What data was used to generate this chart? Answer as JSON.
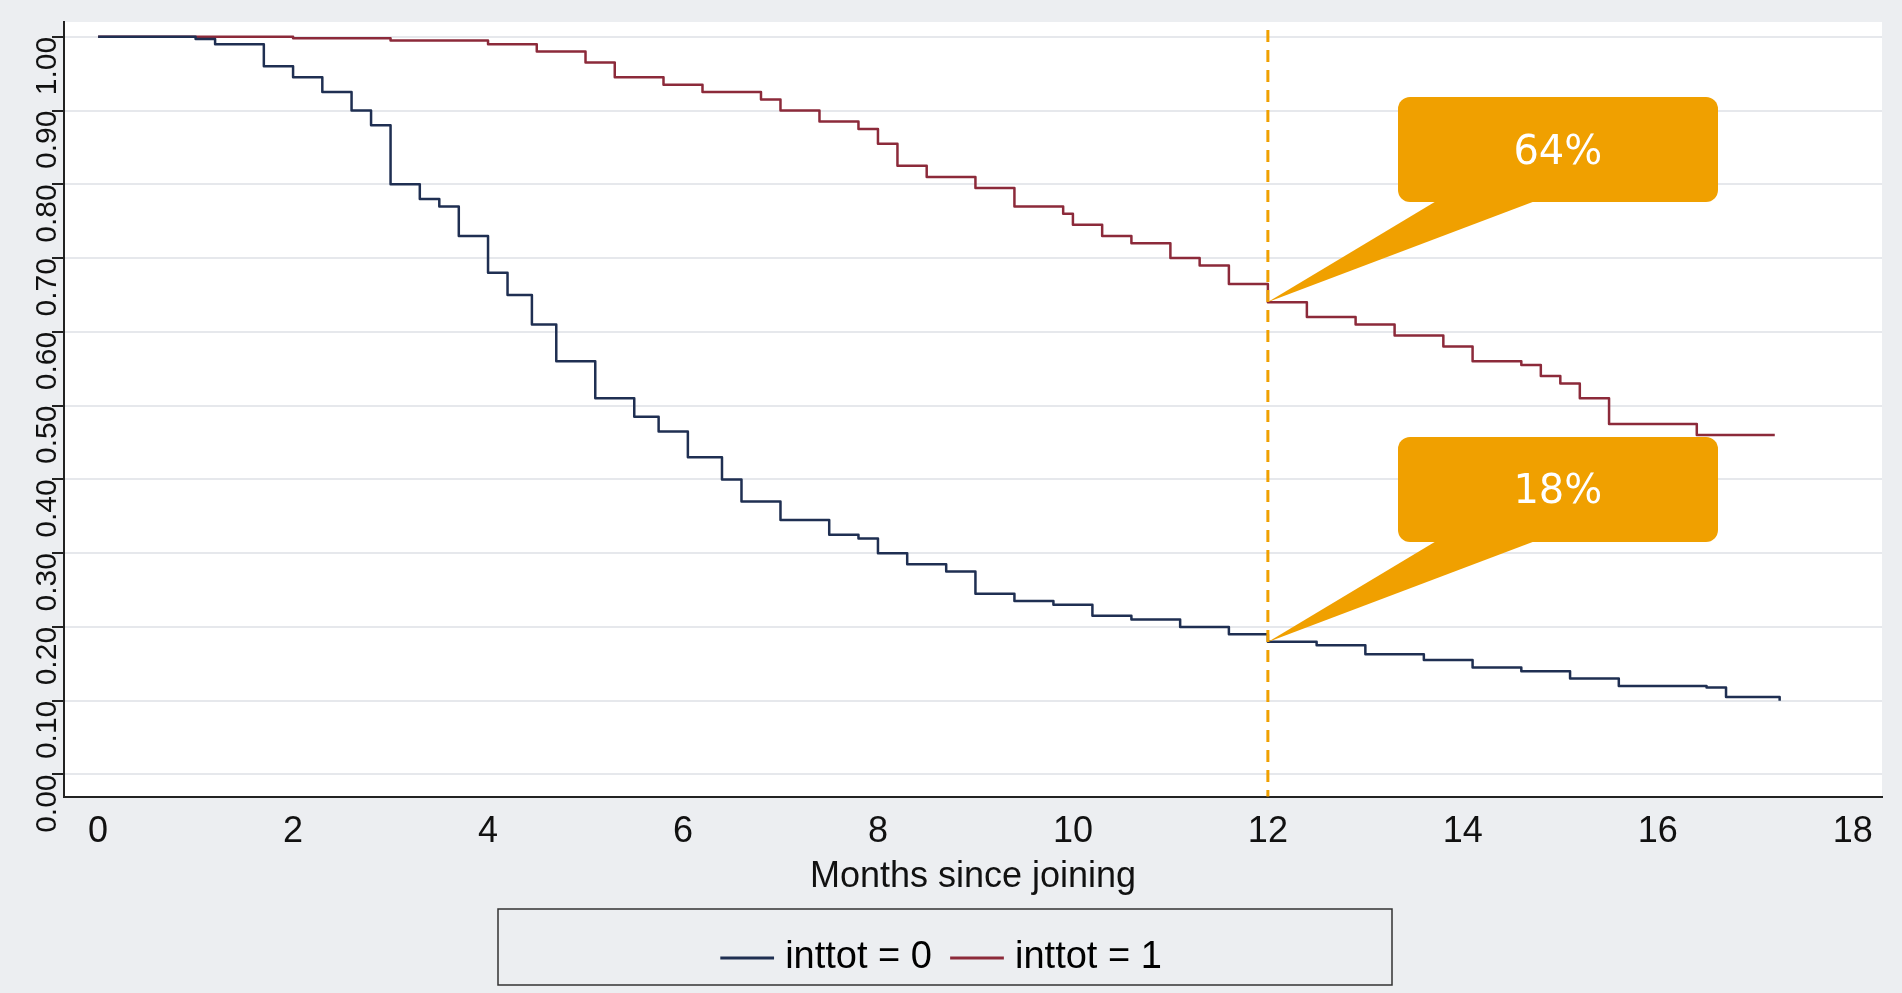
{
  "chart_data": {
    "type": "step",
    "xlabel": "Months since joining",
    "xlim": [
      -0.35,
      18.3
    ],
    "xticks": [
      0,
      2,
      4,
      6,
      8,
      10,
      12,
      14,
      16,
      18
    ],
    "ylim": [
      -0.03,
      1.02
    ],
    "yticks": [
      {
        "value": 0,
        "label": "0.00"
      },
      {
        "value": 0.1,
        "label": "0.10"
      },
      {
        "value": 0.2,
        "label": "0.20"
      },
      {
        "value": 0.3,
        "label": "0.30"
      },
      {
        "value": 0.4,
        "label": "0.40"
      },
      {
        "value": 0.5,
        "label": "0.50"
      },
      {
        "value": 0.6,
        "label": "0.60"
      },
      {
        "value": 0.7,
        "label": "0.70"
      },
      {
        "value": 0.8,
        "label": "0.80"
      },
      {
        "value": 0.9,
        "label": "0.90"
      },
      {
        "value": 1,
        "label": "1.00"
      }
    ],
    "grid": "y",
    "legend": "bottom",
    "marker": "none",
    "line_style": "solid",
    "series": [
      {
        "name": "inttot = 0",
        "color": "#1f2f52",
        "x": [
          0,
          1.0,
          1.2,
          1.7,
          2.0,
          2.3,
          2.6,
          2.8,
          3.0,
          3.3,
          3.5,
          3.7,
          4.0,
          4.2,
          4.45,
          4.7,
          5.1,
          5.5,
          5.75,
          6.05,
          6.4,
          6.6,
          7.0,
          7.5,
          7.8,
          8.0,
          8.3,
          8.7,
          9.0,
          9.4,
          9.8,
          10.2,
          10.6,
          11.1,
          11.6,
          12.0,
          12.5,
          13.0,
          13.6,
          14.1,
          14.6,
          15.1,
          15.6,
          16.5,
          16.7,
          17.25
        ],
        "values": [
          1,
          0.997,
          0.99,
          0.96,
          0.945,
          0.925,
          0.9,
          0.88,
          0.8,
          0.78,
          0.77,
          0.73,
          0.68,
          0.65,
          0.61,
          0.56,
          0.51,
          0.485,
          0.465,
          0.43,
          0.4,
          0.37,
          0.345,
          0.325,
          0.32,
          0.3,
          0.285,
          0.275,
          0.245,
          0.235,
          0.23,
          0.215,
          0.21,
          0.2,
          0.19,
          0.18,
          0.175,
          0.163,
          0.155,
          0.145,
          0.14,
          0.13,
          0.12,
          0.118,
          0.105,
          0.1
        ]
      },
      {
        "name": "inttot = 1",
        "color": "#8c2a3a",
        "x": [
          0,
          2.0,
          3.0,
          4.0,
          4.5,
          5.0,
          5.3,
          5.8,
          6.2,
          6.8,
          7.0,
          7.4,
          7.8,
          8.0,
          8.2,
          8.5,
          9.0,
          9.4,
          9.9,
          10.0,
          10.3,
          10.6,
          11.0,
          11.3,
          11.6,
          12.0,
          12.4,
          12.9,
          13.3,
          13.8,
          14.1,
          14.6,
          14.8,
          15.0,
          15.2,
          15.5,
          16.3,
          16.4,
          17.2
        ],
        "values": [
          1,
          0.998,
          0.995,
          0.99,
          0.98,
          0.965,
          0.945,
          0.935,
          0.925,
          0.915,
          0.9,
          0.885,
          0.875,
          0.855,
          0.825,
          0.81,
          0.795,
          0.77,
          0.76,
          0.745,
          0.73,
          0.72,
          0.7,
          0.69,
          0.665,
          0.64,
          0.62,
          0.61,
          0.595,
          0.58,
          0.56,
          0.555,
          0.54,
          0.53,
          0.51,
          0.475,
          0.475,
          0.46,
          0.46
        ]
      }
    ],
    "ref_lines": [
      {
        "axis": "x",
        "value": 12,
        "color": "#f0a000",
        "line_style": "dashed"
      }
    ],
    "annotations": [
      {
        "text": "64%",
        "x": 12,
        "y": 0.64
      },
      {
        "text": "18%",
        "x": 12,
        "y": 0.18
      }
    ]
  }
}
